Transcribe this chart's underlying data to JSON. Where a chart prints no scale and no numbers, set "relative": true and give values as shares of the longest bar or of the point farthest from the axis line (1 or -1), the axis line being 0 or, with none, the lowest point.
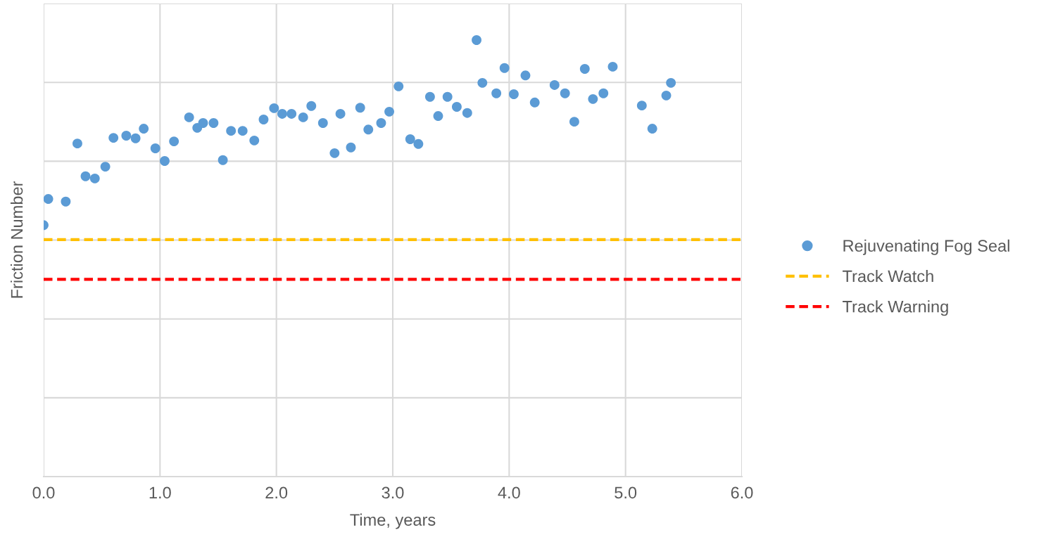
{
  "chart_data": {
    "type": "scatter",
    "xlabel": "Time, years",
    "ylabel": "Friction Number",
    "relative": true,
    "xlim": [
      0,
      6
    ],
    "xticks": [
      {
        "value": 0,
        "label": "0.0"
      },
      {
        "value": 1,
        "label": "1.0"
      },
      {
        "value": 2,
        "label": "2.0"
      },
      {
        "value": 3,
        "label": "3.0"
      },
      {
        "value": 4,
        "label": "4.0"
      },
      {
        "value": 5,
        "label": "5.0"
      },
      {
        "value": 6,
        "label": "6.0"
      }
    ],
    "grid": true,
    "legend": "right",
    "marker": "circle",
    "series": [
      {
        "name": "Rejuvenating Fog Seal",
        "color": "#5b9bd5",
        "x": [
          0.0,
          0.04,
          0.19,
          0.29,
          0.36,
          0.44,
          0.53,
          0.6,
          0.71,
          0.79,
          0.86,
          0.96,
          1.04,
          1.12,
          1.25,
          1.32,
          1.37,
          1.46,
          1.54,
          1.61,
          1.71,
          1.81,
          1.89,
          1.98,
          2.05,
          2.13,
          2.23,
          2.3,
          2.4,
          2.5,
          2.55,
          2.64,
          2.72,
          2.79,
          2.9,
          2.97,
          3.05,
          3.15,
          3.22,
          3.32,
          3.39,
          3.47,
          3.55,
          3.64,
          3.72,
          3.77,
          3.89,
          3.96,
          4.04,
          4.14,
          4.22,
          4.39,
          4.48,
          4.56,
          4.65,
          4.72,
          4.81,
          4.89,
          5.14,
          5.23,
          5.35,
          5.39
        ],
        "values": [
          0.576,
          0.636,
          0.63,
          0.763,
          0.688,
          0.683,
          0.71,
          0.776,
          0.781,
          0.775,
          0.797,
          0.752,
          0.723,
          0.768,
          0.823,
          0.799,
          0.81,
          0.81,
          0.725,
          0.792,
          0.792,
          0.77,
          0.818,
          0.844,
          0.831,
          0.831,
          0.823,
          0.849,
          0.81,
          0.741,
          0.831,
          0.754,
          0.845,
          0.795,
          0.81,
          0.836,
          0.894,
          0.773,
          0.762,
          0.87,
          0.826,
          0.87,
          0.847,
          0.833,
          1.0,
          0.902,
          0.878,
          0.936,
          0.876,
          0.919,
          0.857,
          0.897,
          0.878,
          0.813,
          0.934,
          0.865,
          0.878,
          0.939,
          0.85,
          0.797,
          0.873,
          0.902
        ]
      }
    ],
    "ref_lines": [
      {
        "axis": "y",
        "value": 0.543,
        "label": "Track Watch",
        "color": "#ffc000",
        "line_style": "dashed"
      },
      {
        "axis": "y",
        "value": 0.452,
        "label": "Track Warning",
        "color": "#ff0000",
        "line_style": "dashed"
      }
    ]
  }
}
